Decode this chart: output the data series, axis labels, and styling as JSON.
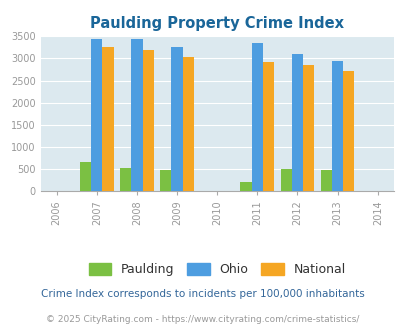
{
  "title": "Paulding Property Crime Index",
  "years": [
    2006,
    2007,
    2008,
    2009,
    2010,
    2011,
    2012,
    2013,
    2014
  ],
  "bar_years": [
    2007,
    2008,
    2009,
    2011,
    2012,
    2013
  ],
  "paulding": [
    670,
    530,
    490,
    220,
    510,
    475
  ],
  "ohio": [
    3450,
    3430,
    3260,
    3360,
    3100,
    2940
  ],
  "national": [
    3250,
    3200,
    3040,
    2910,
    2860,
    2720
  ],
  "color_paulding": "#7bc043",
  "color_ohio": "#4d9de0",
  "color_national": "#f5a623",
  "bg_color": "#dce9ef",
  "grid_color": "#ffffff",
  "ylim": [
    0,
    3500
  ],
  "yticks": [
    0,
    500,
    1000,
    1500,
    2000,
    2500,
    3000,
    3500
  ],
  "tick_color": "#999999",
  "title_color": "#1a6699",
  "legend_label_color": "#333333",
  "legend_labels": [
    "Paulding",
    "Ohio",
    "National"
  ],
  "footnote1": "Crime Index corresponds to incidents per 100,000 inhabitants",
  "footnote2": "© 2025 CityRating.com - https://www.cityrating.com/crime-statistics/",
  "footnote1_color": "#336699",
  "footnote2_color": "#999999",
  "bar_width": 0.28
}
